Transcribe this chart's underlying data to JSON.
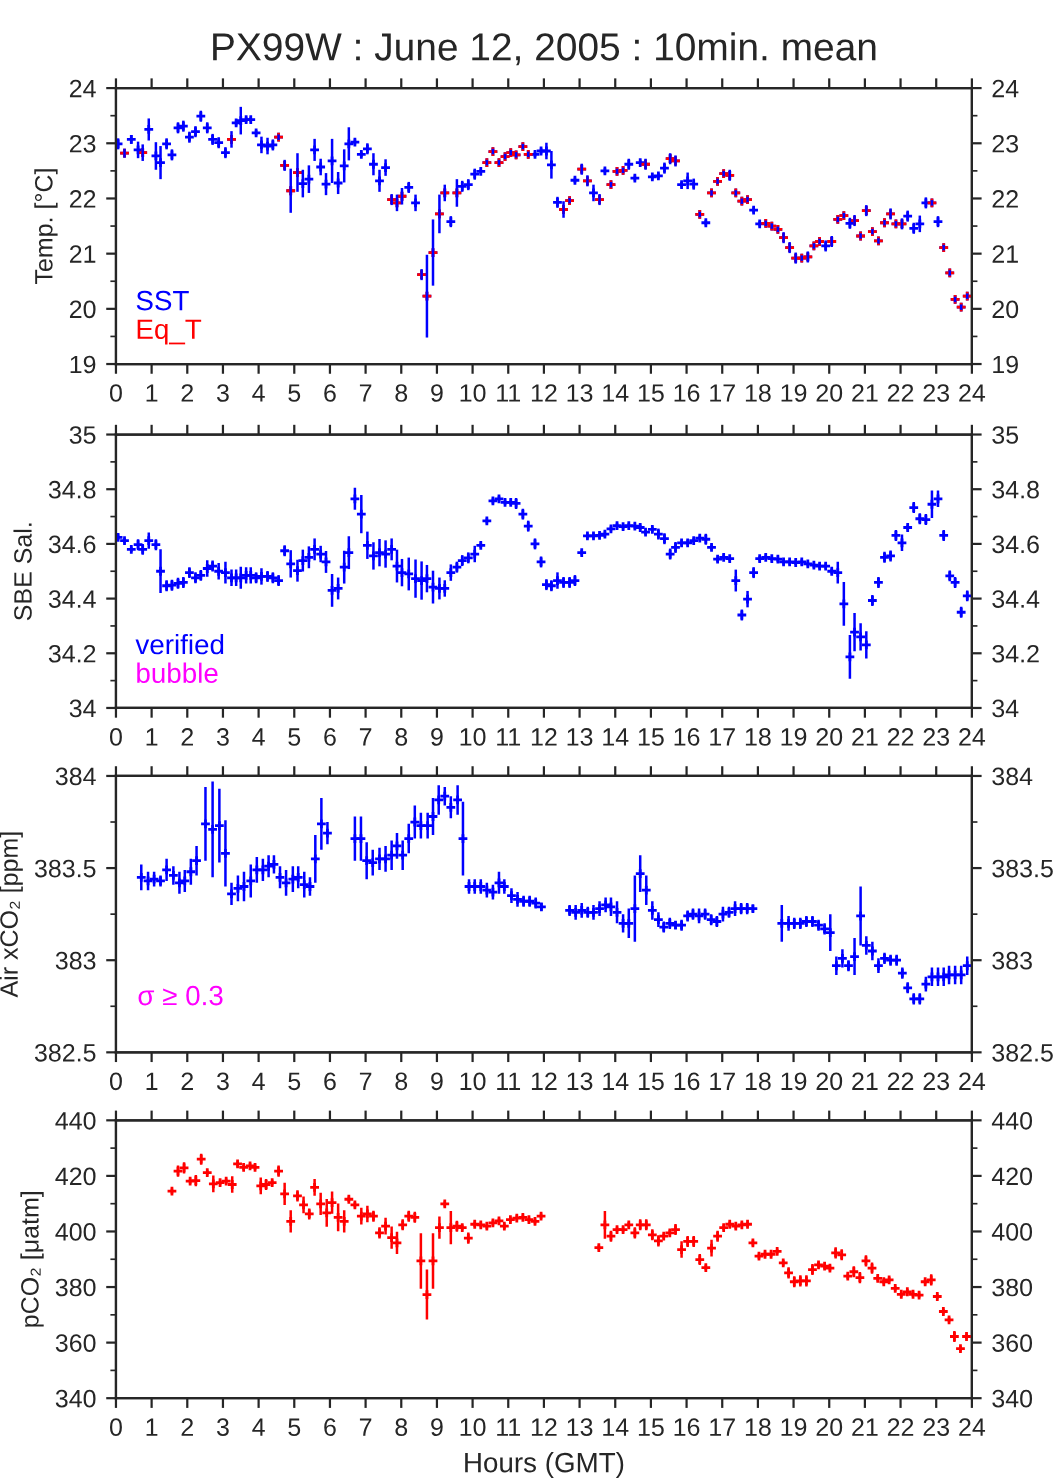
{
  "chart_data": [
    {
      "type": "scatter",
      "title": "PX99W : June 12, 2005 : 10min. mean",
      "ylabel": "Temp. [°C]",
      "marker": "cross",
      "legend": "bottom left",
      "xlim": [
        0,
        24
      ],
      "xticks": [
        0,
        1,
        2,
        3,
        4,
        5,
        6,
        7,
        8,
        9,
        10,
        11,
        12,
        13,
        14,
        15,
        16,
        17,
        18,
        19,
        20,
        21,
        22,
        23,
        24
      ],
      "ylim": [
        19,
        24
      ],
      "yticks": [
        19,
        {
          "value": 19.5,
          "label": null
        },
        20,
        {
          "value": 20.5,
          "label": null
        },
        21,
        {
          "value": 21.5,
          "label": null
        },
        22,
        {
          "value": 22.5,
          "label": null
        },
        23,
        {
          "value": 23.5,
          "label": null
        },
        24
      ],
      "y2lim": [
        19,
        24
      ],
      "y2ticks": [
        19,
        {
          "value": 19.5,
          "label": null
        },
        20,
        {
          "value": 20.5,
          "label": null
        },
        21,
        {
          "value": 21.5,
          "label": null
        },
        22,
        {
          "value": 22.5,
          "label": null
        },
        23,
        {
          "value": 23.5,
          "label": null
        },
        24
      ],
      "series": [
        {
          "name": "SST",
          "color": "#0000ff",
          "x": [
            0.06,
            0.24,
            0.43,
            0.62,
            0.75,
            0.92,
            1.12,
            1.25,
            1.42,
            1.57,
            1.74,
            1.89,
            2.06,
            2.23,
            2.38,
            2.56,
            2.71,
            2.88,
            3.07,
            3.24,
            3.37,
            3.5,
            3.65,
            3.78,
            3.93,
            4.08,
            4.25,
            4.4,
            4.56,
            4.73,
            4.9,
            5.09,
            5.24,
            5.41,
            5.57,
            5.74,
            5.89,
            6.06,
            6.23,
            6.4,
            6.53,
            6.7,
            6.88,
            7.05,
            7.22,
            7.39,
            7.56,
            7.73,
            7.88,
            8.02,
            8.21,
            8.4,
            8.57,
            8.72,
            8.89,
            9.07,
            9.22,
            9.39,
            9.56,
            9.71,
            9.88,
            10.06,
            10.23,
            10.4,
            10.57,
            10.74,
            10.91,
            11.07,
            11.22,
            11.41,
            11.56,
            11.75,
            11.92,
            12.07,
            12.21,
            12.38,
            12.55,
            12.72,
            12.87,
            13.06,
            13.22,
            13.39,
            13.56,
            13.71,
            13.88,
            14.05,
            14.22,
            14.38,
            14.55,
            14.7,
            14.85,
            15.04,
            15.21,
            15.38,
            15.54,
            15.69,
            15.86,
            16.03,
            16.2,
            16.37,
            16.54,
            16.7,
            16.87,
            17.04,
            17.21,
            17.38,
            17.55,
            17.71,
            17.88,
            18.05,
            18.22,
            18.39,
            18.56,
            18.72,
            18.89,
            19.06,
            19.23,
            19.4,
            19.57,
            19.73,
            19.9,
            20.07,
            20.24,
            20.41,
            20.58,
            20.71,
            20.88,
            21.04,
            21.21,
            21.38,
            21.55,
            21.72,
            21.87,
            22.04,
            22.2,
            22.37,
            22.54,
            22.71,
            22.88,
            23.05,
            23.21,
            23.38,
            23.53,
            23.7,
            23.87
          ],
          "values": [
            22.99,
            22.82,
            23.07,
            22.88,
            22.83,
            23.25,
            22.77,
            22.65,
            22.99,
            22.79,
            23.28,
            23.31,
            23.11,
            23.21,
            23.49,
            23.28,
            23.07,
            23.01,
            22.83,
            23.07,
            23.37,
            23.41,
            23.43,
            23.43,
            23.19,
            22.97,
            22.95,
            22.97,
            23.11,
            22.6,
            22.14,
            22.47,
            22.27,
            22.35,
            22.88,
            22.57,
            22.26,
            22.68,
            22.28,
            22.59,
            22.99,
            23.02,
            22.8,
            22.9,
            22.62,
            22.32,
            22.56,
            21.98,
            21.92,
            22.04,
            22.2,
            21.92,
            20.62,
            20.23,
            21.02,
            21.72,
            22.1,
            21.58,
            22.1,
            22.22,
            22.25,
            22.44,
            22.49,
            22.65,
            22.85,
            22.65,
            22.76,
            22.83,
            22.79,
            22.94,
            22.8,
            22.8,
            22.86,
            22.86,
            22.61,
            21.93,
            21.8,
            21.96,
            22.33,
            22.53,
            22.32,
            22.1,
            21.98,
            22.5,
            22.25,
            22.49,
            22.51,
            22.62,
            22.37,
            22.65,
            22.62,
            22.39,
            22.41,
            22.55,
            22.72,
            22.68,
            22.25,
            22.32,
            22.26,
            21.71,
            21.56,
            22.1,
            22.31,
            22.45,
            22.42,
            22.1,
            21.95,
            21.98,
            21.79,
            21.54,
            21.55,
            21.5,
            21.44,
            21.29,
            21.11,
            20.92,
            20.92,
            20.94,
            21.14,
            21.22,
            21.14,
            21.22,
            21.62,
            21.69,
            21.55,
            21.6,
            21.32,
            21.78,
            21.4,
            21.23,
            21.56,
            21.72,
            21.54,
            21.54,
            21.68,
            21.46,
            21.54,
            21.92,
            21.92,
            21.58,
            21.11,
            20.65,
            20.17,
            20.03,
            20.23
          ],
          "errors": [
            0.1,
            0.08,
            0.08,
            0.15,
            0.15,
            0.2,
            0.25,
            0.3,
            0.1,
            0.1,
            0.1,
            0.1,
            0.1,
            0.1,
            0.1,
            0.1,
            0.1,
            0.1,
            0.1,
            0.15,
            0.05,
            0.25,
            0.05,
            0.05,
            0.05,
            0.15,
            0.15,
            0.1,
            0.05,
            0.1,
            0.4,
            0.35,
            0.25,
            0.25,
            0.2,
            0.15,
            0.2,
            0.4,
            0.2,
            0.3,
            0.3,
            0.05,
            0.05,
            0.1,
            0.2,
            0.2,
            0.15,
            0.1,
            0.15,
            0.15,
            0.1,
            0.15,
            0.1,
            0.75,
            0.6,
            0.35,
            0.15,
            0.1,
            0.25,
            0.1,
            0.1,
            0.1,
            0.05,
            0.05,
            0.05,
            0.05,
            0.05,
            0.05,
            0.05,
            0.05,
            0.05,
            0.05,
            0.05,
            0.15,
            0.25,
            0.1,
            0.15,
            0.05,
            0.05,
            0.1,
            0.1,
            0.15,
            0.1,
            0.05,
            0.05,
            0.05,
            0.05,
            0.1,
            0.05,
            0.05,
            0.1,
            0.05,
            0.05,
            0.1,
            0.1,
            0.1,
            0.05,
            0.15,
            0.1,
            0.05,
            0.05,
            0.05,
            0.05,
            0.05,
            0.1,
            0.05,
            0.05,
            0.05,
            0.05,
            0.05,
            0.05,
            0.05,
            0.05,
            0.1,
            0.1,
            0.1,
            0.05,
            0.1,
            0.05,
            0.05,
            0.1,
            0.1,
            0.05,
            0.05,
            0.1,
            0.1,
            0.05,
            0.1,
            0.05,
            0.05,
            0.05,
            0.1,
            0.05,
            0.1,
            0.1,
            0.1,
            0.15,
            0.1,
            0.05,
            0.1,
            0.05,
            0.05,
            0.05,
            0.05,
            0.05
          ]
        },
        {
          "name": "Eq_T",
          "color": "#ff0000",
          "x": [
            0.24,
            0.75,
            3.24,
            4.56,
            4.73,
            4.9,
            5.09,
            7.73,
            7.88,
            8.02,
            8.57,
            8.72,
            8.89,
            9.07,
            9.22,
            9.56,
            10.4,
            10.57,
            10.74,
            10.91,
            11.07,
            11.22,
            11.41,
            11.56,
            12.55,
            12.72,
            13.06,
            13.22,
            13.56,
            13.88,
            14.05,
            14.22,
            14.85,
            15.54,
            15.69,
            16.37,
            16.7,
            16.87,
            17.04,
            17.21,
            17.38,
            17.55,
            17.71,
            18.22,
            18.39,
            18.56,
            18.72,
            18.89,
            19.06,
            19.23,
            19.4,
            19.57,
            19.73,
            20.07,
            20.24,
            20.41,
            20.71,
            20.88,
            21.04,
            21.21,
            21.38,
            21.55,
            21.72,
            21.87,
            22.04,
            22.88,
            23.21,
            23.38,
            23.53,
            23.7,
            23.87
          ],
          "values": [
            22.82,
            22.83,
            23.07,
            23.11,
            22.6,
            22.14,
            22.47,
            21.98,
            21.92,
            22.04,
            20.62,
            20.23,
            21.02,
            21.72,
            22.1,
            22.1,
            22.65,
            22.85,
            22.65,
            22.76,
            22.83,
            22.79,
            22.94,
            22.8,
            21.8,
            21.96,
            22.53,
            22.32,
            21.98,
            22.25,
            22.49,
            22.51,
            22.62,
            22.72,
            22.68,
            21.71,
            22.1,
            22.31,
            22.45,
            22.42,
            22.1,
            21.95,
            21.98,
            21.55,
            21.5,
            21.44,
            21.29,
            21.11,
            20.92,
            20.92,
            20.94,
            21.14,
            21.22,
            21.22,
            21.62,
            21.69,
            21.6,
            21.32,
            21.78,
            21.4,
            21.23,
            21.56,
            21.72,
            21.54,
            21.54,
            21.92,
            21.11,
            20.65,
            20.17,
            20.03,
            20.23
          ]
        }
      ]
    },
    {
      "type": "scatter",
      "ylabel": "SBE Sal.",
      "marker": "cross",
      "legend": "bottom left",
      "xlim": [
        0,
        24
      ],
      "xticks": [
        0,
        1,
        2,
        3,
        4,
        5,
        6,
        7,
        8,
        9,
        10,
        11,
        12,
        13,
        14,
        15,
        16,
        17,
        18,
        19,
        20,
        21,
        22,
        23,
        24
      ],
      "ylim": [
        34,
        35
      ],
      "yticks": [
        34,
        {
          "value": 34.1,
          "label": null
        },
        34.2,
        {
          "value": 34.3,
          "label": null
        },
        34.4,
        {
          "value": 34.5,
          "label": null
        },
        34.6,
        {
          "value": 34.7,
          "label": null
        },
        34.8,
        {
          "value": 34.9,
          "label": null
        },
        35
      ],
      "y2lim": [
        34,
        35
      ],
      "y2ticks": [
        34,
        {
          "value": 34.1,
          "label": null
        },
        34.2,
        {
          "value": 34.3,
          "label": null
        },
        34.4,
        {
          "value": 34.5,
          "label": null
        },
        34.6,
        {
          "value": 34.7,
          "label": null
        },
        34.8,
        {
          "value": 34.9,
          "label": null
        },
        35
      ],
      "series": [
        {
          "name": "verified",
          "color": "#0000ff",
          "x": [
            0.06,
            0.24,
            0.43,
            0.62,
            0.75,
            0.92,
            1.12,
            1.25,
            1.42,
            1.57,
            1.74,
            1.89,
            2.06,
            2.23,
            2.38,
            2.56,
            2.71,
            2.88,
            3.07,
            3.24,
            3.37,
            3.5,
            3.65,
            3.78,
            3.93,
            4.08,
            4.25,
            4.4,
            4.56,
            4.73,
            4.9,
            5.09,
            5.24,
            5.41,
            5.57,
            5.74,
            5.89,
            6.06,
            6.23,
            6.4,
            6.53,
            6.7,
            6.88,
            7.05,
            7.22,
            7.39,
            7.56,
            7.73,
            7.88,
            8.02,
            8.21,
            8.4,
            8.57,
            8.72,
            8.89,
            9.07,
            9.22,
            9.39,
            9.56,
            9.71,
            9.88,
            10.06,
            10.23,
            10.4,
            10.57,
            10.74,
            10.91,
            11.07,
            11.22,
            11.41,
            11.56,
            11.75,
            11.92,
            12.07,
            12.21,
            12.38,
            12.55,
            12.72,
            12.87,
            13.06,
            13.22,
            13.39,
            13.56,
            13.71,
            13.88,
            14.05,
            14.22,
            14.38,
            14.55,
            14.7,
            14.85,
            15.04,
            15.21,
            15.38,
            15.54,
            15.69,
            15.86,
            16.03,
            16.2,
            16.37,
            16.54,
            16.7,
            16.87,
            17.04,
            17.21,
            17.38,
            17.55,
            17.71,
            17.88,
            18.05,
            18.22,
            18.39,
            18.56,
            18.72,
            18.89,
            19.06,
            19.23,
            19.4,
            19.57,
            19.73,
            19.9,
            20.07,
            20.24,
            20.41,
            20.58,
            20.71,
            20.88,
            21.04,
            21.21,
            21.38,
            21.55,
            21.72,
            21.87,
            22.04,
            22.2,
            22.37,
            22.54,
            22.71,
            22.88,
            23.05,
            23.21,
            23.38,
            23.53,
            23.7,
            23.87
          ],
          "values": [
            34.624,
            34.612,
            34.58,
            34.597,
            34.58,
            34.612,
            34.597,
            34.5,
            34.447,
            34.449,
            34.456,
            34.459,
            34.495,
            34.476,
            34.485,
            34.51,
            34.519,
            34.5,
            34.495,
            34.476,
            34.476,
            34.476,
            34.485,
            34.485,
            34.476,
            34.481,
            34.481,
            34.476,
            34.466,
            34.575,
            34.527,
            34.502,
            34.539,
            34.551,
            34.58,
            34.563,
            34.534,
            34.43,
            34.437,
            34.515,
            34.568,
            34.765,
            34.709,
            34.595,
            34.556,
            34.568,
            34.563,
            34.58,
            34.519,
            34.495,
            34.49,
            34.473,
            34.466,
            34.473,
            34.442,
            34.437,
            34.437,
            34.495,
            34.515,
            34.539,
            34.549,
            34.563,
            34.595,
            34.684,
            34.757,
            34.765,
            34.752,
            34.752,
            34.748,
            34.709,
            34.665,
            34.6,
            34.534,
            34.451,
            34.447,
            34.466,
            34.459,
            34.459,
            34.466,
            34.568,
            34.629,
            34.629,
            34.631,
            34.636,
            34.655,
            34.667,
            34.663,
            34.667,
            34.665,
            34.66,
            34.643,
            34.653,
            34.636,
            34.619,
            34.563,
            34.587,
            34.604,
            34.604,
            34.612,
            34.621,
            34.617,
            34.587,
            34.544,
            34.551,
            34.546,
            34.466,
            34.34,
            34.398,
            34.495,
            34.546,
            34.551,
            34.546,
            34.544,
            34.534,
            34.534,
            34.532,
            34.534,
            34.527,
            34.522,
            34.519,
            34.519,
            34.5,
            34.495,
            34.381,
            34.187,
            34.277,
            34.26,
            34.231,
            34.393,
            34.459,
            34.551,
            34.556,
            34.631,
            34.604,
            34.66,
            34.733,
            34.692,
            34.689,
            34.745,
            34.765,
            34.631,
            34.483,
            34.459,
            34.35,
            34.41
          ],
          "errors": [
            0.01,
            0.01,
            0.01,
            0.02,
            0.02,
            0.03,
            0.02,
            0.08,
            0.02,
            0.02,
            0.02,
            0.02,
            0.02,
            0.02,
            0.02,
            0.03,
            0.02,
            0.03,
            0.04,
            0.03,
            0.03,
            0.04,
            0.03,
            0.03,
            0.02,
            0.03,
            0.02,
            0.02,
            0.02,
            0.02,
            0.05,
            0.04,
            0.04,
            0.04,
            0.04,
            0.03,
            0.04,
            0.06,
            0.04,
            0.06,
            0.06,
            0.04,
            0.07,
            0.05,
            0.05,
            0.05,
            0.05,
            0.04,
            0.06,
            0.05,
            0.06,
            0.07,
            0.07,
            0.05,
            0.06,
            0.04,
            0.03,
            0.03,
            0.02,
            0.02,
            0.02,
            0.03,
            0.01,
            0.01,
            0.01,
            0.01,
            0.01,
            0.01,
            0.02,
            0.02,
            0.02,
            0.02,
            0.02,
            0.02,
            0.02,
            0.03,
            0.02,
            0.02,
            0.02,
            0.01,
            0.01,
            0.01,
            0.01,
            0.01,
            0.01,
            0.01,
            0.01,
            0.01,
            0.01,
            0.01,
            0.01,
            0.01,
            0.02,
            0.02,
            0.02,
            0.02,
            0.01,
            0.01,
            0.01,
            0.01,
            0.02,
            0.01,
            0.01,
            0.01,
            0.01,
            0.04,
            0.02,
            0.03,
            0.02,
            0.01,
            0.01,
            0.01,
            0.01,
            0.01,
            0.01,
            0.01,
            0.01,
            0.01,
            0.01,
            0.01,
            0.01,
            0.01,
            0.04,
            0.08,
            0.08,
            0.07,
            0.05,
            0.05,
            0.02,
            0.02,
            0.02,
            0.02,
            0.02,
            0.03,
            0.01,
            0.02,
            0.02,
            0.02,
            0.05,
            0.03,
            0.02,
            0.02,
            0.02,
            0.02,
            0.02
          ]
        },
        {
          "name": "bubble",
          "color": "#ff00ff"
        }
      ]
    },
    {
      "type": "scatter",
      "ylabel": "Air xCO₂ [ppm]",
      "marker": "cross",
      "xlim": [
        0,
        24
      ],
      "xticks": [
        0,
        1,
        2,
        3,
        4,
        5,
        6,
        7,
        8,
        9,
        10,
        11,
        12,
        13,
        14,
        15,
        16,
        17,
        18,
        19,
        20,
        21,
        22,
        23,
        24
      ],
      "ylim": [
        382.5,
        384
      ],
      "yticks": [
        382.5,
        {
          "value": 382.75,
          "label": null
        },
        383,
        {
          "value": 383.25,
          "label": null
        },
        383.5,
        {
          "value": 383.75,
          "label": null
        },
        384
      ],
      "y2lim": [
        382.5,
        384
      ],
      "y2ticks": [
        382.5,
        {
          "value": 382.75,
          "label": null
        },
        383,
        {
          "value": 383.25,
          "label": null
        },
        383.5,
        {
          "value": 383.75,
          "label": null
        },
        384
      ],
      "series": [
        {
          "color": "#0000ff",
          "x": [
            0.71,
            0.9,
            1.07,
            1.25,
            1.42,
            1.61,
            1.78,
            1.93,
            2.1,
            2.26,
            2.51,
            2.71,
            2.9,
            3.07,
            3.24,
            3.42,
            3.59,
            3.78,
            3.95,
            4.12,
            4.28,
            4.43,
            4.6,
            4.77,
            4.96,
            5.11,
            5.28,
            5.44,
            5.59,
            5.76,
            5.93,
            6.7,
            6.87,
            7.03,
            7.2,
            7.39,
            7.56,
            7.73,
            7.88,
            8.04,
            8.21,
            8.38,
            8.55,
            8.74,
            8.89,
            9.05,
            9.22,
            9.39,
            9.58,
            9.73,
            9.9,
            10.06,
            10.23,
            10.4,
            10.57,
            10.74,
            10.89,
            11.09,
            11.26,
            11.43,
            11.6,
            11.77,
            11.93,
            12.72,
            12.89,
            13.06,
            13.23,
            13.39,
            13.56,
            13.73,
            13.88,
            14.05,
            14.22,
            14.38,
            14.55,
            14.7,
            14.87,
            15.04,
            15.21,
            15.36,
            15.53,
            15.69,
            15.86,
            16.03,
            16.18,
            16.35,
            16.52,
            16.69,
            16.85,
            17.02,
            17.19,
            17.36,
            17.53,
            17.7,
            17.86,
            18.67,
            18.86,
            19.02,
            19.19,
            19.36,
            19.53,
            19.7,
            19.87,
            20.03,
            20.2,
            20.37,
            20.54,
            20.71,
            20.88,
            21.04,
            21.21,
            21.38,
            21.55,
            21.72,
            21.89,
            22.05,
            22.2,
            22.37,
            22.54,
            22.71,
            22.88,
            23.05,
            23.21,
            23.36,
            23.53,
            23.7,
            23.87
          ],
          "values": [
            383.45,
            383.43,
            383.44,
            383.43,
            383.49,
            383.46,
            383.42,
            383.43,
            383.48,
            383.54,
            383.74,
            383.71,
            383.73,
            383.58,
            383.36,
            383.39,
            383.4,
            383.43,
            383.49,
            383.49,
            383.51,
            383.52,
            383.45,
            383.42,
            383.44,
            383.45,
            383.41,
            383.4,
            383.55,
            383.74,
            383.69,
            383.66,
            383.66,
            383.54,
            383.53,
            383.55,
            383.55,
            383.57,
            383.62,
            383.57,
            383.66,
            383.75,
            383.73,
            383.73,
            383.78,
            383.87,
            383.89,
            383.83,
            383.87,
            383.66,
            383.4,
            383.4,
            383.4,
            383.38,
            383.37,
            383.42,
            383.4,
            383.35,
            383.33,
            383.32,
            383.32,
            383.31,
            383.29,
            383.27,
            383.26,
            383.27,
            383.26,
            383.26,
            383.28,
            383.3,
            383.29,
            383.26,
            383.2,
            383.2,
            383.28,
            383.47,
            383.38,
            383.27,
            383.22,
            383.18,
            383.2,
            383.19,
            383.19,
            383.24,
            383.25,
            383.24,
            383.25,
            383.22,
            383.21,
            383.25,
            383.26,
            383.28,
            383.28,
            383.28,
            383.28,
            383.2,
            383.2,
            383.2,
            383.2,
            383.21,
            383.21,
            383.19,
            383.17,
            383.15,
            382.97,
            383.01,
            382.97,
            383.02,
            383.24,
            383.08,
            383.05,
            382.97,
            383.01,
            383.0,
            383.0,
            382.93,
            382.85,
            382.79,
            382.79,
            382.87,
            382.91,
            382.91,
            382.91,
            382.92,
            382.92,
            382.92,
            382.97
          ],
          "errors": [
            0.07,
            0.05,
            0.04,
            0.03,
            0.06,
            0.05,
            0.06,
            0.06,
            0.07,
            0.08,
            0.2,
            0.26,
            0.2,
            0.18,
            0.06,
            0.07,
            0.08,
            0.09,
            0.07,
            0.06,
            0.06,
            0.05,
            0.06,
            0.07,
            0.07,
            0.06,
            0.07,
            0.05,
            0.13,
            0.14,
            0.06,
            0.12,
            0.12,
            0.1,
            0.07,
            0.06,
            0.07,
            0.08,
            0.07,
            0.08,
            0.08,
            0.09,
            0.07,
            0.07,
            0.1,
            0.08,
            0.05,
            0.06,
            0.08,
            0.2,
            0.04,
            0.04,
            0.04,
            0.04,
            0.04,
            0.06,
            0.04,
            0.04,
            0.04,
            0.03,
            0.03,
            0.03,
            0.02,
            0.03,
            0.04,
            0.04,
            0.03,
            0.04,
            0.04,
            0.04,
            0.05,
            0.06,
            0.05,
            0.08,
            0.18,
            0.1,
            0.08,
            0.05,
            0.04,
            0.03,
            0.03,
            0.02,
            0.03,
            0.03,
            0.03,
            0.04,
            0.03,
            0.03,
            0.03,
            0.04,
            0.03,
            0.04,
            0.03,
            0.03,
            0.02,
            0.1,
            0.04,
            0.03,
            0.03,
            0.03,
            0.03,
            0.03,
            0.03,
            0.1,
            0.05,
            0.05,
            0.03,
            0.1,
            0.16,
            0.05,
            0.05,
            0.04,
            0.03,
            0.03,
            0.03,
            0.03,
            0.03,
            0.03,
            0.03,
            0.04,
            0.05,
            0.05,
            0.05,
            0.05,
            0.05,
            0.05,
            0.05
          ]
        },
        {
          "name": "σ ≥ 0.3",
          "color": "#ff00ff"
        }
      ]
    },
    {
      "type": "scatter",
      "ylabel": "pCO₂ [μatm]",
      "xlabel": "Hours (GMT)",
      "marker": "cross",
      "xlim": [
        0,
        24
      ],
      "xticks": [
        0,
        1,
        2,
        3,
        4,
        5,
        6,
        7,
        8,
        9,
        10,
        11,
        12,
        13,
        14,
        15,
        16,
        17,
        18,
        19,
        20,
        21,
        22,
        23,
        24
      ],
      "ylim": [
        340,
        440
      ],
      "yticks": [
        340,
        {
          "value": 350,
          "label": null
        },
        360,
        {
          "value": 370,
          "label": null
        },
        380,
        {
          "value": 390,
          "label": null
        },
        400,
        {
          "value": 410,
          "label": null
        },
        420,
        {
          "value": 430,
          "label": null
        },
        440
      ],
      "y2lim": [
        340,
        440
      ],
      "y2ticks": [
        340,
        {
          "value": 350,
          "label": null
        },
        360,
        {
          "value": 370,
          "label": null
        },
        380,
        {
          "value": 390,
          "label": null
        },
        400,
        {
          "value": 410,
          "label": null
        },
        420,
        {
          "value": 430,
          "label": null
        },
        440
      ],
      "series": [
        {
          "color": "#ff0000",
          "x": [
            1.57,
            1.74,
            1.91,
            2.08,
            2.24,
            2.39,
            2.56,
            2.73,
            2.92,
            3.09,
            3.26,
            3.41,
            3.58,
            3.76,
            3.9,
            4.06,
            4.21,
            4.38,
            4.56,
            4.73,
            4.9,
            5.09,
            5.26,
            5.42,
            5.57,
            5.74,
            5.91,
            6.06,
            6.23,
            6.4,
            6.53,
            6.7,
            6.88,
            7.05,
            7.22,
            7.39,
            7.56,
            7.73,
            7.88,
            8.04,
            8.21,
            8.38,
            8.55,
            8.72,
            8.89,
            9.07,
            9.22,
            9.39,
            9.56,
            9.71,
            9.88,
            10.06,
            10.23,
            10.4,
            10.57,
            10.74,
            10.89,
            11.06,
            11.24,
            11.41,
            11.58,
            11.75,
            11.92,
            13.54,
            13.71,
            13.88,
            14.05,
            14.22,
            14.38,
            14.55,
            14.7,
            14.87,
            15.04,
            15.21,
            15.36,
            15.53,
            15.69,
            15.86,
            16.03,
            16.2,
            16.37,
            16.54,
            16.7,
            16.87,
            17.04,
            17.21,
            17.38,
            17.55,
            17.71,
            17.86,
            18.03,
            18.2,
            18.37,
            18.54,
            18.71,
            18.86,
            19.02,
            19.19,
            19.36,
            19.53,
            19.7,
            19.87,
            20.02,
            20.18,
            20.35,
            20.52,
            20.69,
            20.86,
            21.03,
            21.2,
            21.36,
            21.53,
            21.68,
            21.85,
            22.02,
            22.19,
            22.35,
            22.52,
            22.69,
            22.86,
            23.03,
            23.2,
            23.36,
            23.51,
            23.68,
            23.85
          ],
          "values": [
            414.5,
            421.7,
            422.9,
            418.1,
            418.3,
            426.0,
            421.2,
            417.1,
            417.6,
            418.1,
            416.9,
            424.3,
            423.1,
            423.6,
            423.1,
            416.4,
            416.9,
            417.6,
            421.7,
            413.5,
            403.6,
            412.8,
            409.6,
            406.3,
            415.9,
            409.9,
            406.7,
            410.4,
            405.1,
            403.6,
            411.6,
            409.6,
            405.5,
            406.3,
            405.5,
            399.5,
            401.9,
            397.8,
            395.9,
            402.4,
            405.5,
            405.1,
            389.4,
            377.3,
            389.4,
            401.4,
            409.9,
            401.4,
            401.9,
            401.4,
            397.6,
            402.6,
            402.4,
            401.9,
            403.1,
            403.8,
            401.9,
            404.3,
            404.8,
            405.1,
            404.3,
            403.6,
            405.5,
            394.2,
            402.4,
            398.3,
            400.7,
            400.7,
            402.4,
            399.5,
            402.4,
            402.4,
            398.8,
            396.6,
            398.3,
            399.5,
            400.7,
            393.5,
            396.4,
            396.4,
            389.9,
            387.0,
            394.0,
            398.3,
            401.4,
            402.6,
            401.9,
            402.4,
            402.6,
            395.9,
            391.1,
            391.8,
            391.8,
            392.8,
            388.7,
            385.1,
            381.9,
            382.2,
            382.2,
            386.3,
            388.0,
            387.5,
            386.8,
            392.3,
            391.6,
            383.9,
            385.5,
            383.4,
            389.4,
            386.8,
            383.1,
            381.9,
            382.6,
            379.5,
            377.4,
            378.3,
            377.4,
            377.1,
            381.9,
            382.6,
            376.6,
            371.2,
            368.2,
            362.2,
            357.8,
            362.2
          ],
          "errors": [
            1,
            2,
            2,
            1,
            2,
            2,
            1,
            3,
            1,
            1,
            3,
            1,
            1,
            1,
            1,
            3,
            2,
            1,
            2,
            4,
            4,
            2,
            3,
            2,
            3,
            4,
            5,
            4,
            5,
            4,
            1,
            1,
            3,
            3,
            2,
            2,
            3,
            4,
            4,
            2,
            2,
            2,
            10,
            9,
            10,
            4,
            1,
            6,
            2,
            1,
            2,
            1,
            1,
            1,
            1,
            1,
            1,
            1,
            1,
            1,
            1,
            1,
            1,
            1,
            5,
            2,
            1,
            1,
            1,
            2,
            2,
            2,
            2,
            2,
            1,
            1,
            2,
            3,
            2,
            2,
            2,
            1,
            3,
            2,
            1,
            1,
            1,
            1,
            1,
            1,
            1,
            1,
            1,
            1,
            1,
            2,
            2,
            2,
            2,
            2,
            1,
            1,
            1,
            2,
            2,
            1,
            2,
            2,
            2,
            2,
            1,
            1,
            1,
            1,
            1,
            1,
            1,
            1,
            1,
            2,
            1,
            1,
            1,
            2,
            1,
            1
          ]
        }
      ]
    }
  ]
}
